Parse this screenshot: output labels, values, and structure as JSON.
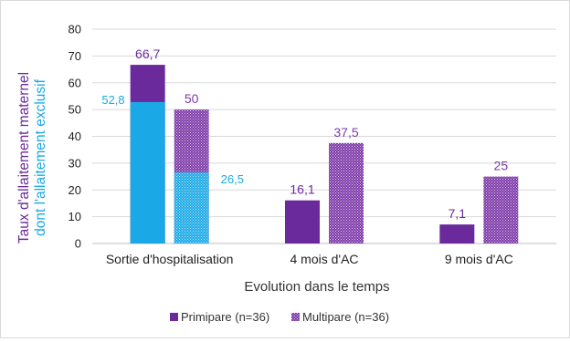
{
  "colors": {
    "primipare": "#6b2a9b",
    "multipare": "#7e3aa9",
    "exclusive": "#1aa9e6",
    "axis_text": "#222222",
    "gridline": "#d9d9d9",
    "ylabel_purple": "#6b2a9b",
    "ylabel_blue": "#1aa9e6"
  },
  "chart_data": {
    "type": "bar",
    "title": "",
    "xlabel": "Evolution dans le temps",
    "ylabel_lines": [
      "Taux d'allaitement maternel",
      "dont l'allaitement exclusif"
    ],
    "ylim": [
      0,
      80
    ],
    "yticks": [
      0,
      10,
      20,
      30,
      40,
      50,
      60,
      70,
      80
    ],
    "grid": true,
    "categories": [
      "Sortie d'hospitalisation",
      "4 mois d'AC",
      "9 mois d'AC"
    ],
    "series": [
      {
        "name": "Primipare (n=36)",
        "values": [
          66.7,
          16.1,
          7.1
        ],
        "labels": [
          "66,7",
          "16,1",
          "7,1"
        ],
        "pattern": "solid"
      },
      {
        "name": "Multipare (n=36)",
        "values": [
          50,
          37.5,
          25
        ],
        "labels": [
          "50",
          "37,5",
          "25"
        ],
        "pattern": "dotted"
      }
    ],
    "exclusive_overlay": {
      "category": "Sortie d'hospitalisation",
      "values": [
        52.8,
        26.5
      ],
      "labels": [
        "52,8",
        "26,5"
      ]
    },
    "legend_position": "bottom"
  }
}
